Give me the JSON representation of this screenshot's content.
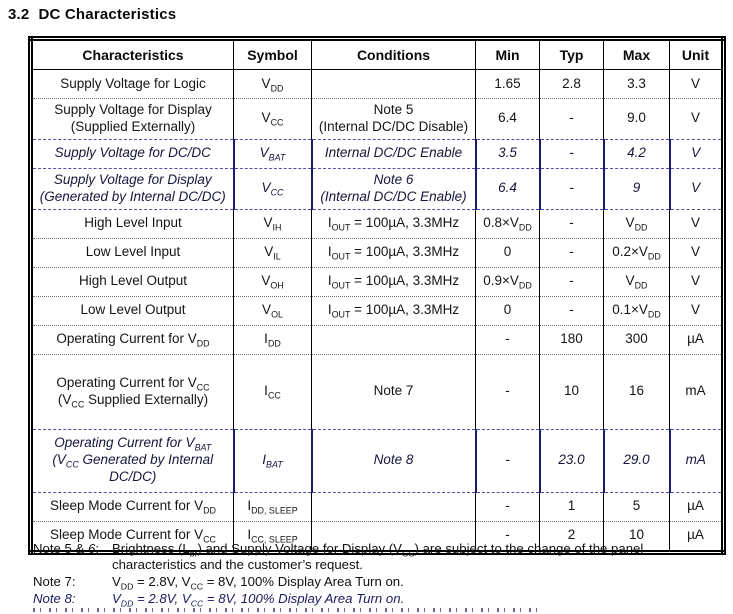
{
  "page": {
    "section_number": "3.2",
    "section_title": "DC Characteristics"
  },
  "table": {
    "headers": [
      "Characteristics",
      "Symbol",
      "Conditions",
      "Min",
      "Typ",
      "Max",
      "Unit"
    ],
    "rows": [
      {
        "characteristics": "Supply Voltage for Logic",
        "symbol": "V~DD~",
        "conditions": "",
        "min": "1.65",
        "typ": "2.8",
        "max": "3.3",
        "unit": "V",
        "italic": false,
        "tall": false
      },
      {
        "characteristics": "Supply Voltage for Display\n(Supplied Externally)",
        "symbol": "V~CC~",
        "conditions": "Note 5\n(Internal DC/DC Disable)",
        "min": "6.4",
        "typ": "-",
        "max": "9.0",
        "unit": "V",
        "italic": false,
        "tall": false
      },
      {
        "characteristics": "Supply Voltage for DC/DC",
        "symbol": "V~BAT~",
        "conditions": "Internal DC/DC Enable",
        "min": "3.5",
        "typ": "-",
        "max": "4.2",
        "unit": "V",
        "italic": true,
        "tall": false
      },
      {
        "characteristics": "Supply Voltage for Display\n(Generated by Internal DC/DC)",
        "symbol": "V~CC~",
        "conditions": "Note 6\n(Internal DC/DC Enable)",
        "min": "6.4",
        "typ": "-",
        "max": "9",
        "unit": "V",
        "italic": true,
        "tall": false
      },
      {
        "characteristics": "High Level Input",
        "symbol": "V~IH~",
        "conditions": "I~OUT~ = 100µA, 3.3MHz",
        "min": "0.8×V~DD~",
        "typ": "-",
        "max": "V~DD~",
        "unit": "V",
        "italic": false,
        "tall": false
      },
      {
        "characteristics": "Low Level Input",
        "symbol": "V~IL~",
        "conditions": "I~OUT~ = 100µA, 3.3MHz",
        "min": "0",
        "typ": "-",
        "max": "0.2×V~DD~",
        "unit": "V",
        "italic": false,
        "tall": false
      },
      {
        "characteristics": "High Level Output",
        "symbol": "V~OH~",
        "conditions": "I~OUT~ = 100µA, 3.3MHz",
        "min": "0.9×V~DD~",
        "typ": "-",
        "max": "V~DD~",
        "unit": "V",
        "italic": false,
        "tall": false
      },
      {
        "characteristics": "Low Level Output",
        "symbol": "V~OL~",
        "conditions": "I~OUT~ = 100µA, 3.3MHz",
        "min": "0",
        "typ": "-",
        "max": "0.1×V~DD~",
        "unit": "V",
        "italic": false,
        "tall": false
      },
      {
        "characteristics": "Operating Current for V~DD~",
        "symbol": "I~DD~",
        "conditions": "",
        "min": "-",
        "typ": "180",
        "max": "300",
        "unit": "µA",
        "italic": false,
        "tall": false
      },
      {
        "characteristics": "Operating Current for V~CC~\n(V~CC~ Supplied Externally)",
        "symbol": "I~CC~",
        "conditions": "Note 7",
        "min": "-",
        "typ": "10",
        "max": "16",
        "unit": "mA",
        "italic": false,
        "tall": true
      },
      {
        "characteristics": "Operating Current for V~BAT~\n(V~CC~ Generated by Internal DC/DC)",
        "symbol": "I~BAT~",
        "conditions": "Note 8",
        "min": "-",
        "typ": "23.0",
        "max": "29.0",
        "unit": "mA",
        "italic": true,
        "tall": true
      },
      {
        "characteristics": "Sleep Mode Current for V~DD~",
        "symbol": "I~DD, SLEEP~",
        "conditions": "",
        "min": "-",
        "typ": "1",
        "max": "5",
        "unit": "µA",
        "italic": false,
        "tall": false
      },
      {
        "characteristics": "Sleep Mode Current for V~CC~",
        "symbol": "I~CC, SLEEP~",
        "conditions": "",
        "min": "-",
        "typ": "2",
        "max": "10",
        "unit": "µA",
        "italic": false,
        "tall": false
      }
    ]
  },
  "notes": [
    {
      "label": "Note 5 & *6*:",
      "text": "Brightness (L~br~) and Supply Voltage for Display (V~CC~) are subject to the change of the panel characteristics and the customer’s request.",
      "italic": false
    },
    {
      "label": "Note 7:",
      "text": "V~DD~ = 2.8V, V~CC~ = 8V, 100% Display Area Turn on.",
      "italic": false
    },
    {
      "label": "Note 8:",
      "text": "V~DD~ = 2.8V, V~CC~ = 8V, 100% Display Area Turn on.",
      "italic": true
    }
  ],
  "colors": {
    "text": "#111111",
    "italic_row_border": "#1a1a6e",
    "italic_note_text": "#1a1a5e",
    "table_border": "#000000"
  }
}
